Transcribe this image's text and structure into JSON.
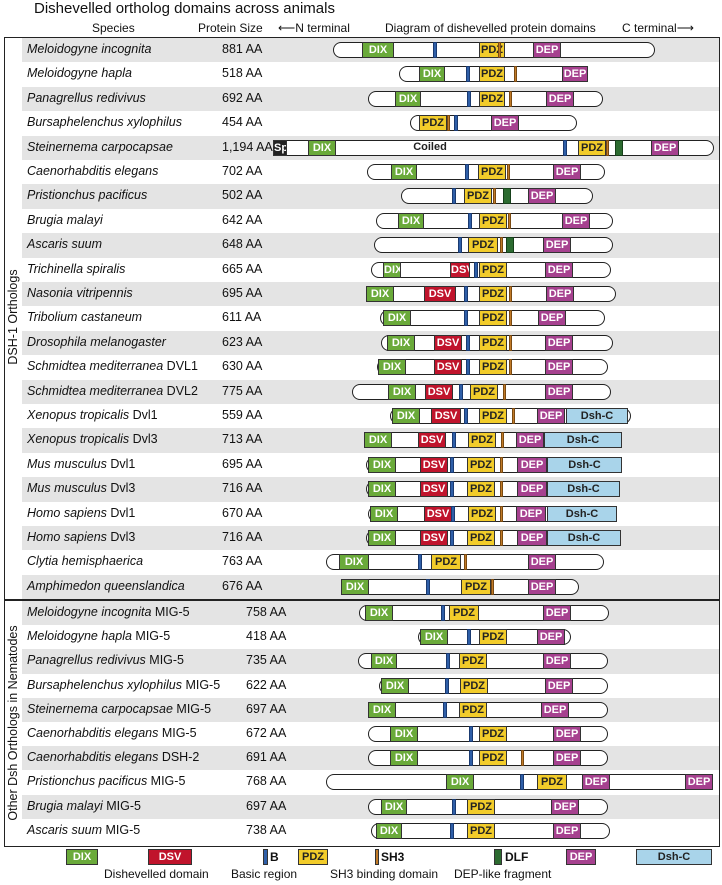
{
  "title": "Dishevelled ortholog domains across animals",
  "headers": {
    "species": "Species",
    "size": "Protein Size",
    "nterm": "N terminal",
    "diagram": "Diagram of dishevelled protein domains",
    "cterm": "C terminal"
  },
  "groups": {
    "dsh1": "DSH-1 Orthologs",
    "other": "Other Dsh Orthologs in Nematodes"
  },
  "colors": {
    "dix": "#6aaa3a",
    "dsv": "#c0142c",
    "pdz": "#f2cc2a",
    "dep": "#a6418f",
    "dshc": "#a9d4ea",
    "basic": "#2f5fa8",
    "sh3": "#c17a28",
    "dlf": "#2c6b30",
    "shade": "#e4e4e4"
  },
  "domain_labels": {
    "dix": "DIX",
    "dsv": "DSV",
    "pdz": "PDZ",
    "dep": "DEP",
    "dshc": "Dsh-C",
    "sp": "Sp",
    "coiled": "Coiled",
    "basic": "B",
    "sh3": "SH3",
    "dlf": "DLF"
  },
  "rows": [
    {
      "species": "Meloidogyne incognita",
      "suffix": "",
      "size": "881 AA"
    },
    {
      "species": "Meloidogyne hapla",
      "suffix": "",
      "size": "518 AA"
    },
    {
      "species": "Panagrellus redivivus",
      "suffix": "",
      "size": "692 AA"
    },
    {
      "species": "Bursaphelenchus xylophilus",
      "suffix": "",
      "size": "454 AA"
    },
    {
      "species": "Steinernema carpocapsae",
      "suffix": "",
      "size": "1,194 AA"
    },
    {
      "species": "Caenorhabditis elegans",
      "suffix": "",
      "size": "702 AA"
    },
    {
      "species": "Pristionchus pacificus",
      "suffix": "",
      "size": "502 AA"
    },
    {
      "species": "Brugia malayi",
      "suffix": "",
      "size": "642 AA"
    },
    {
      "species": "Ascaris suum",
      "suffix": "",
      "size": "648 AA"
    },
    {
      "species": "Trichinella spiralis",
      "suffix": "",
      "size": "665 AA"
    },
    {
      "species": "Nasonia vitripennis",
      "suffix": "",
      "size": "695 AA"
    },
    {
      "species": "Tribolium castaneum",
      "suffix": "",
      "size": "611 AA"
    },
    {
      "species": "Drosophila melanogaster",
      "suffix": "",
      "size": "623 AA"
    },
    {
      "species": "Schmidtea mediterranea",
      "suffix": " DVL1",
      "size": "630 AA"
    },
    {
      "species": "Schmidtea mediterranea",
      "suffix": " DVL2",
      "size": "775 AA"
    },
    {
      "species": "Xenopus tropicalis",
      "suffix": " Dvl1",
      "size": "559 AA"
    },
    {
      "species": "Xenopus tropicalis",
      "suffix": " Dvl3",
      "size": "713 AA"
    },
    {
      "species": "Mus musculus",
      "suffix": " Dvl1",
      "size": "695 AA"
    },
    {
      "species": "Mus musculus",
      "suffix": " Dvl3",
      "size": "716 AA"
    },
    {
      "species": "Homo sapiens",
      "suffix": " Dvl1",
      "size": "670 AA"
    },
    {
      "species": "Homo sapiens",
      "suffix": " Dvl3",
      "size": "716 AA"
    },
    {
      "species": "Clytia hemisphaerica",
      "suffix": "",
      "size": "763 AA"
    },
    {
      "species": "Amphimedon queenslandica",
      "suffix": "",
      "size": "676 AA"
    },
    {
      "species": "Meloidogyne incognita",
      "suffix": " MIG-5",
      "size": "758 AA"
    },
    {
      "species": "Meloidogyne hapla",
      "suffix": " MIG-5",
      "size": "418 AA"
    },
    {
      "species": "Panagrellus redivivus",
      "suffix": " MIG-5",
      "size": "735 AA"
    },
    {
      "species": "Bursaphelenchus xylophilus",
      "suffix": " MIG-5",
      "size": "622 AA"
    },
    {
      "species": "Steinernema carpocapsae",
      "suffix": " MIG-5",
      "size": "697 AA"
    },
    {
      "species": "Caenorhabditis elegans",
      "suffix": " MIG-5",
      "size": "672 AA"
    },
    {
      "species": "Caenorhabditis elegans",
      "suffix": " DSH-2",
      "size": "691 AA"
    },
    {
      "species": "Pristionchus pacificus",
      "suffix": " MIG-5",
      "size": "768 AA"
    },
    {
      "species": "Brugia malayi",
      "suffix": " MIG-5",
      "size": "697 AA"
    },
    {
      "species": "Ascaris suum",
      "suffix": " MIG-5",
      "size": "738 AA"
    }
  ],
  "legend": {
    "dix_desc": "Dishevelled domain",
    "basic_desc": "Basic region",
    "sh3_desc": "SH3 binding domain",
    "dlf_desc": "DEP-like fragment"
  }
}
